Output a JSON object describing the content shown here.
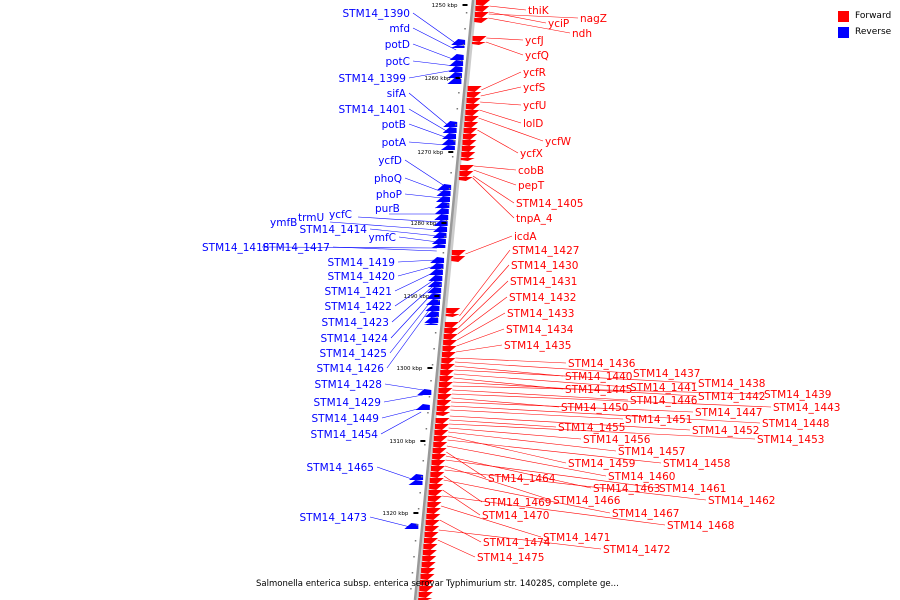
{
  "colors": {
    "forward": "#ff0000",
    "reverse": "#0000ff",
    "axis": "#999999"
  },
  "legend": {
    "forward_label": "Forward",
    "reverse_label": "Reverse"
  },
  "caption": "Salmonella enterica subsp. enterica serovar Typhimurium str. 14028S, complete ge...",
  "scale_labels": [
    "1250 kbp",
    "1260 kbp",
    "1270 kbp",
    "1280 kbp",
    "1290 kbp",
    "1300 kbp",
    "1310 kbp",
    "1320 kbp"
  ],
  "forward_genes": [
    "thiK",
    "yciP",
    "nagZ",
    "ndh",
    "ycfJ",
    "ycfQ",
    "ycfR",
    "ycfS",
    "ycfU",
    "lolD",
    "ycfW",
    "ycfX",
    "cobB",
    "pepT",
    "STM14_1405",
    "tnpA_4",
    "icdA",
    "STM14_1427",
    "STM14_1430",
    "STM14_1431",
    "STM14_1432",
    "STM14_1433",
    "STM14_1434",
    "STM14_1435",
    "STM14_1436",
    "STM14_1437",
    "STM14_1440",
    "STM14_1438",
    "STM14_1441",
    "STM14_1445",
    "STM14_1442",
    "STM14_1439",
    "STM14_1446",
    "STM14_1443",
    "STM14_1450",
    "STM14_1447",
    "STM14_1448",
    "STM14_1451",
    "STM14_1452",
    "STM14_1455",
    "STM14_1453",
    "STM14_1456",
    "STM14_1457",
    "STM14_1459",
    "STM14_1458",
    "STM14_1460",
    "STM14_1464",
    "STM14_1463",
    "STM14_1461",
    "STM14_1466",
    "STM14_1462",
    "STM14_1469",
    "STM14_1467",
    "STM14_1470",
    "STM14_1468",
    "STM14_1471",
    "STM14_1474",
    "STM14_1472",
    "STM14_1475"
  ],
  "reverse_genes": [
    "STM14_1390",
    "mfd",
    "potD",
    "potC",
    "STM14_1399",
    "sifA",
    "STM14_1401",
    "potB",
    "potA",
    "ycfD",
    "phoQ",
    "phoP",
    "purB",
    "ycfC",
    "trmU",
    "ymfB",
    "STM14_1414",
    "ymfC",
    "STM14_1418",
    "STM14_1417",
    "STM14_1419",
    "STM14_1420",
    "STM14_1421",
    "STM14_1422",
    "STM14_1423",
    "STM14_1424",
    "STM14_1425",
    "STM14_1426",
    "STM14_1428",
    "STM14_1429",
    "STM14_1449",
    "STM14_1454",
    "STM14_1465",
    "STM14_1473"
  ]
}
